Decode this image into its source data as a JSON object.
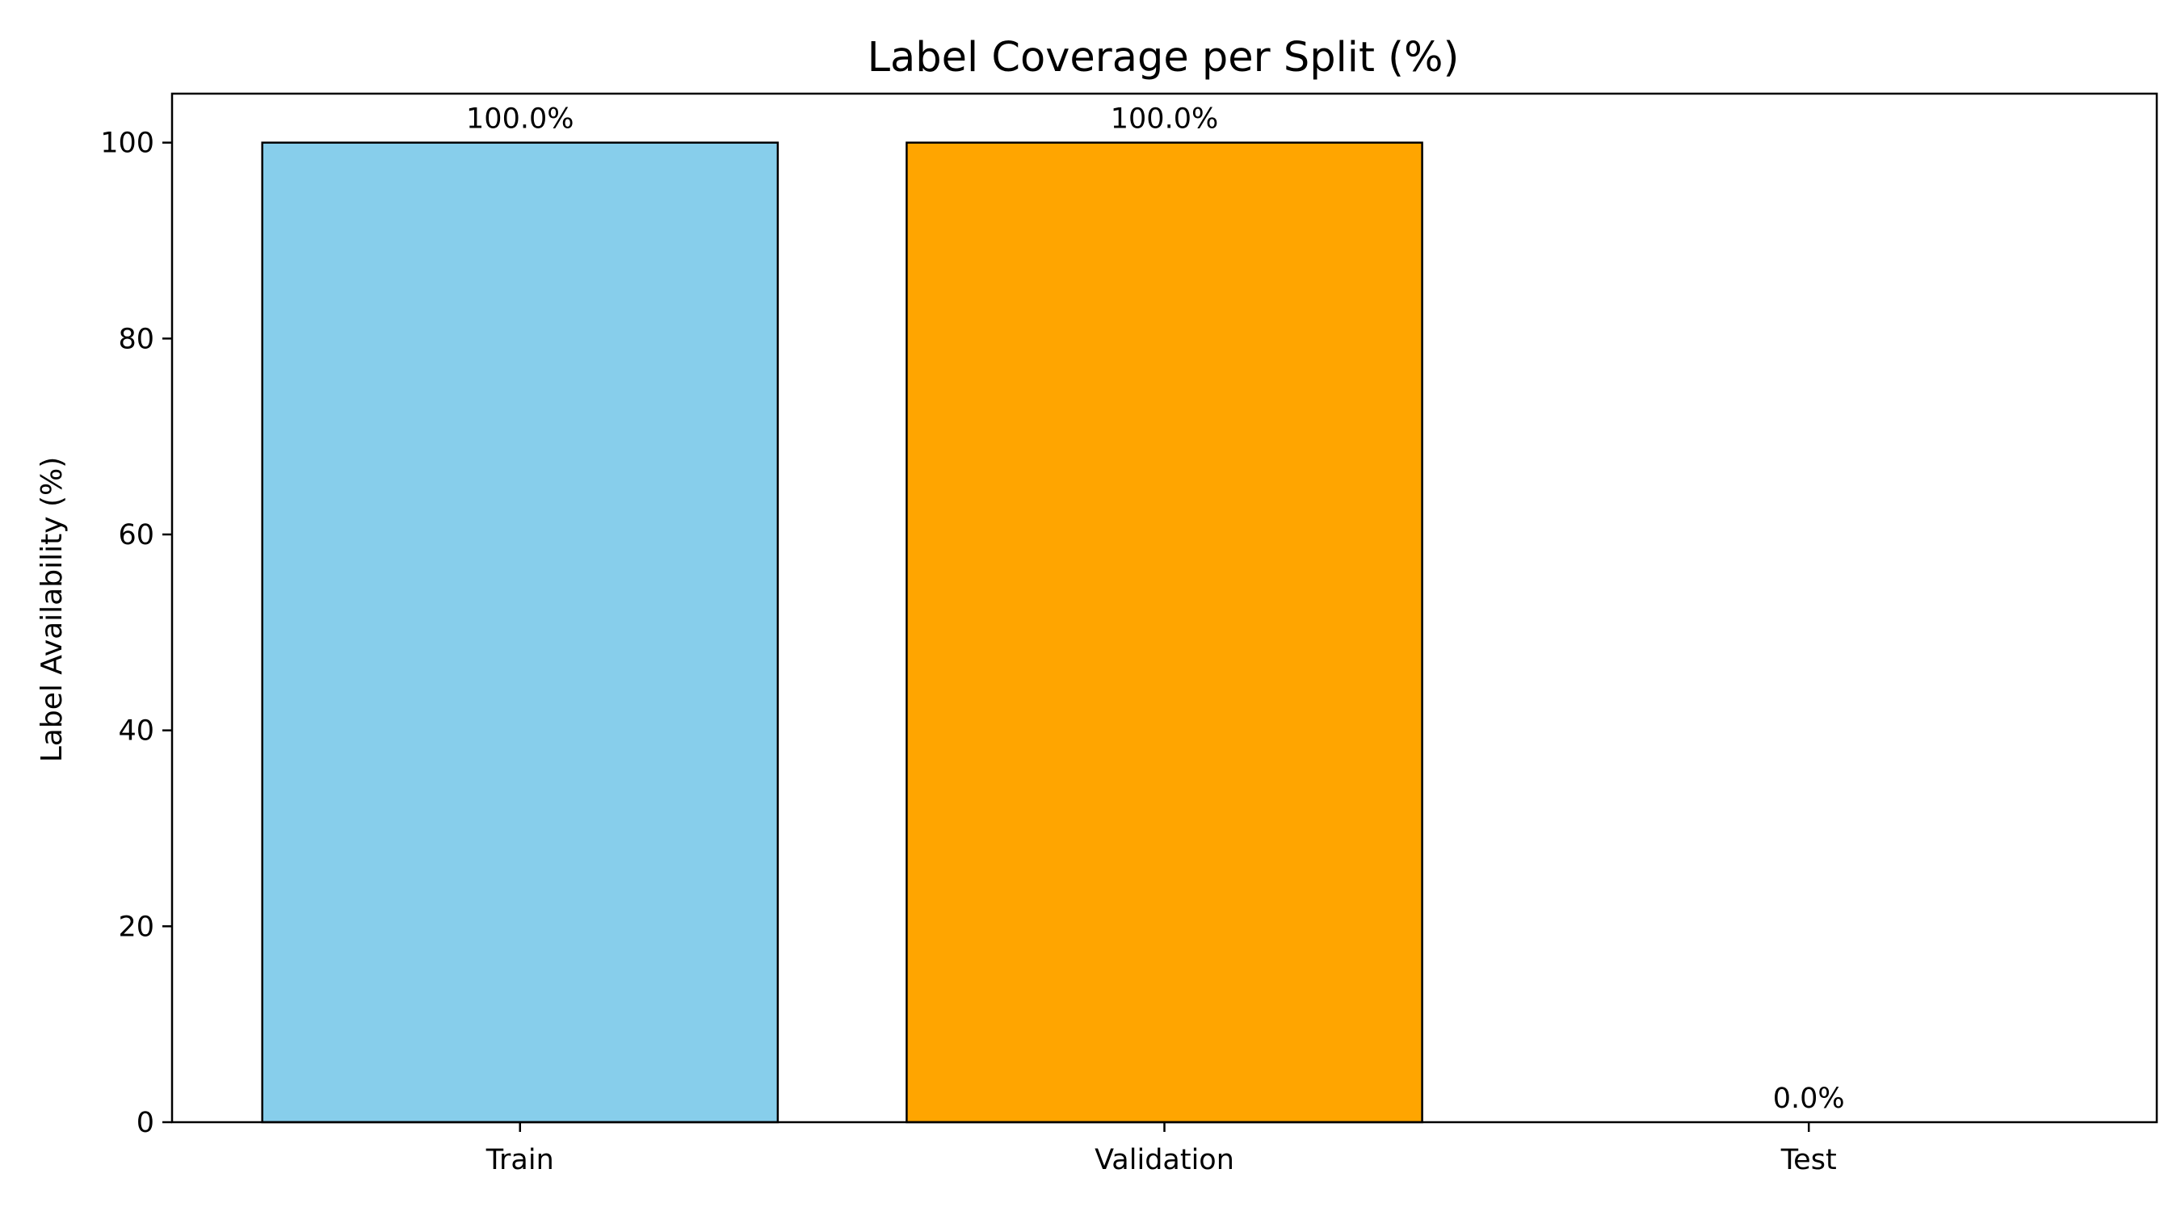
{
  "chart_data": {
    "type": "bar",
    "title": "Label Coverage per Split (%)",
    "xlabel": "",
    "ylabel": "Label Availability (%)",
    "categories": [
      "Train",
      "Validation",
      "Test"
    ],
    "values": [
      100,
      100,
      0
    ],
    "data_labels": [
      "100.0%",
      "100.0%",
      "0.0%"
    ],
    "colors": [
      "#87CEEB",
      "#FFA500",
      "#FFFFFF"
    ],
    "edge_color": "#000000",
    "ylim": [
      0,
      105
    ],
    "yticks": [
      0,
      20,
      40,
      60,
      80,
      100
    ],
    "grid": false,
    "legend": "none"
  }
}
